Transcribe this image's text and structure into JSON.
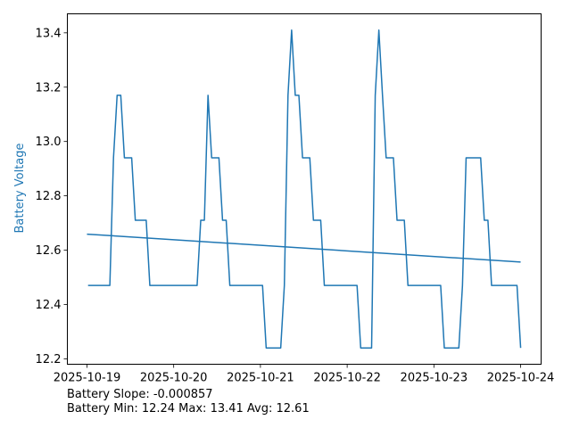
{
  "chart_data": {
    "type": "line",
    "title": "",
    "xlabel": "",
    "ylabel": "Battery Voltage",
    "x_unit": "hours since 2025-10-19 00:00",
    "xlim_days": [
      -0.226,
      5.236
    ],
    "ylim": [
      12.18,
      13.47
    ],
    "grid": false,
    "x_ticks": [
      {
        "day": 0,
        "label": "2025-10-19"
      },
      {
        "day": 1,
        "label": "2025-10-20"
      },
      {
        "day": 2,
        "label": "2025-10-21"
      },
      {
        "day": 3,
        "label": "2025-10-22"
      },
      {
        "day": 4,
        "label": "2025-10-23"
      },
      {
        "day": 5,
        "label": "2025-10-24"
      }
    ],
    "y_ticks": [
      {
        "value": 12.2,
        "label": "12.2"
      },
      {
        "value": 12.4,
        "label": "12.4"
      },
      {
        "value": 12.6,
        "label": "12.6"
      },
      {
        "value": 12.8,
        "label": "12.8"
      },
      {
        "value": 13.0,
        "label": "13.0"
      },
      {
        "value": 13.2,
        "label": "13.2"
      },
      {
        "value": 13.4,
        "label": "13.4"
      }
    ],
    "series": [
      {
        "name": "Battery Voltage",
        "color": "#1f77b4",
        "start_hour": 0.3,
        "end_hour": 120,
        "values": [
          12.47,
          12.47,
          12.47,
          12.47,
          12.47,
          12.47,
          12.47,
          12.94,
          13.17,
          13.17,
          12.94,
          12.94,
          12.94,
          12.71,
          12.71,
          12.71,
          12.71,
          12.47,
          12.47,
          12.47,
          12.47,
          12.47,
          12.47,
          12.47,
          12.47,
          12.47,
          12.47,
          12.47,
          12.47,
          12.47,
          12.47,
          12.71,
          12.71,
          13.17,
          12.94,
          12.94,
          12.94,
          12.71,
          12.71,
          12.47,
          12.47,
          12.47,
          12.47,
          12.47,
          12.47,
          12.47,
          12.47,
          12.47,
          12.47,
          12.24,
          12.24,
          12.24,
          12.24,
          12.24,
          12.47,
          13.17,
          13.41,
          13.17,
          13.17,
          12.94,
          12.94,
          12.94,
          12.71,
          12.71,
          12.71,
          12.47,
          12.47,
          12.47,
          12.47,
          12.47,
          12.47,
          12.47,
          12.47,
          12.47,
          12.47,
          12.24,
          12.24,
          12.24,
          12.24,
          13.17,
          13.41,
          13.17,
          12.94,
          12.94,
          12.94,
          12.71,
          12.71,
          12.71,
          12.47,
          12.47,
          12.47,
          12.47,
          12.47,
          12.47,
          12.47,
          12.47,
          12.47,
          12.47,
          12.24,
          12.24,
          12.24,
          12.24,
          12.24,
          12.47,
          12.94,
          12.94,
          12.94,
          12.94,
          12.94,
          12.71,
          12.71,
          12.47,
          12.47,
          12.47,
          12.47,
          12.47,
          12.47,
          12.47,
          12.47,
          12.24
        ]
      },
      {
        "name": "Trend",
        "color": "#1f77b4",
        "type": "linear-fit",
        "intercept": 12.659,
        "slope_per_hour": -0.000857,
        "x_hours": [
          0,
          120
        ]
      }
    ],
    "annotations": [
      "Battery Slope: -0.000857",
      "Battery Min: 12.24 Max: 13.41 Avg: 12.61"
    ]
  }
}
